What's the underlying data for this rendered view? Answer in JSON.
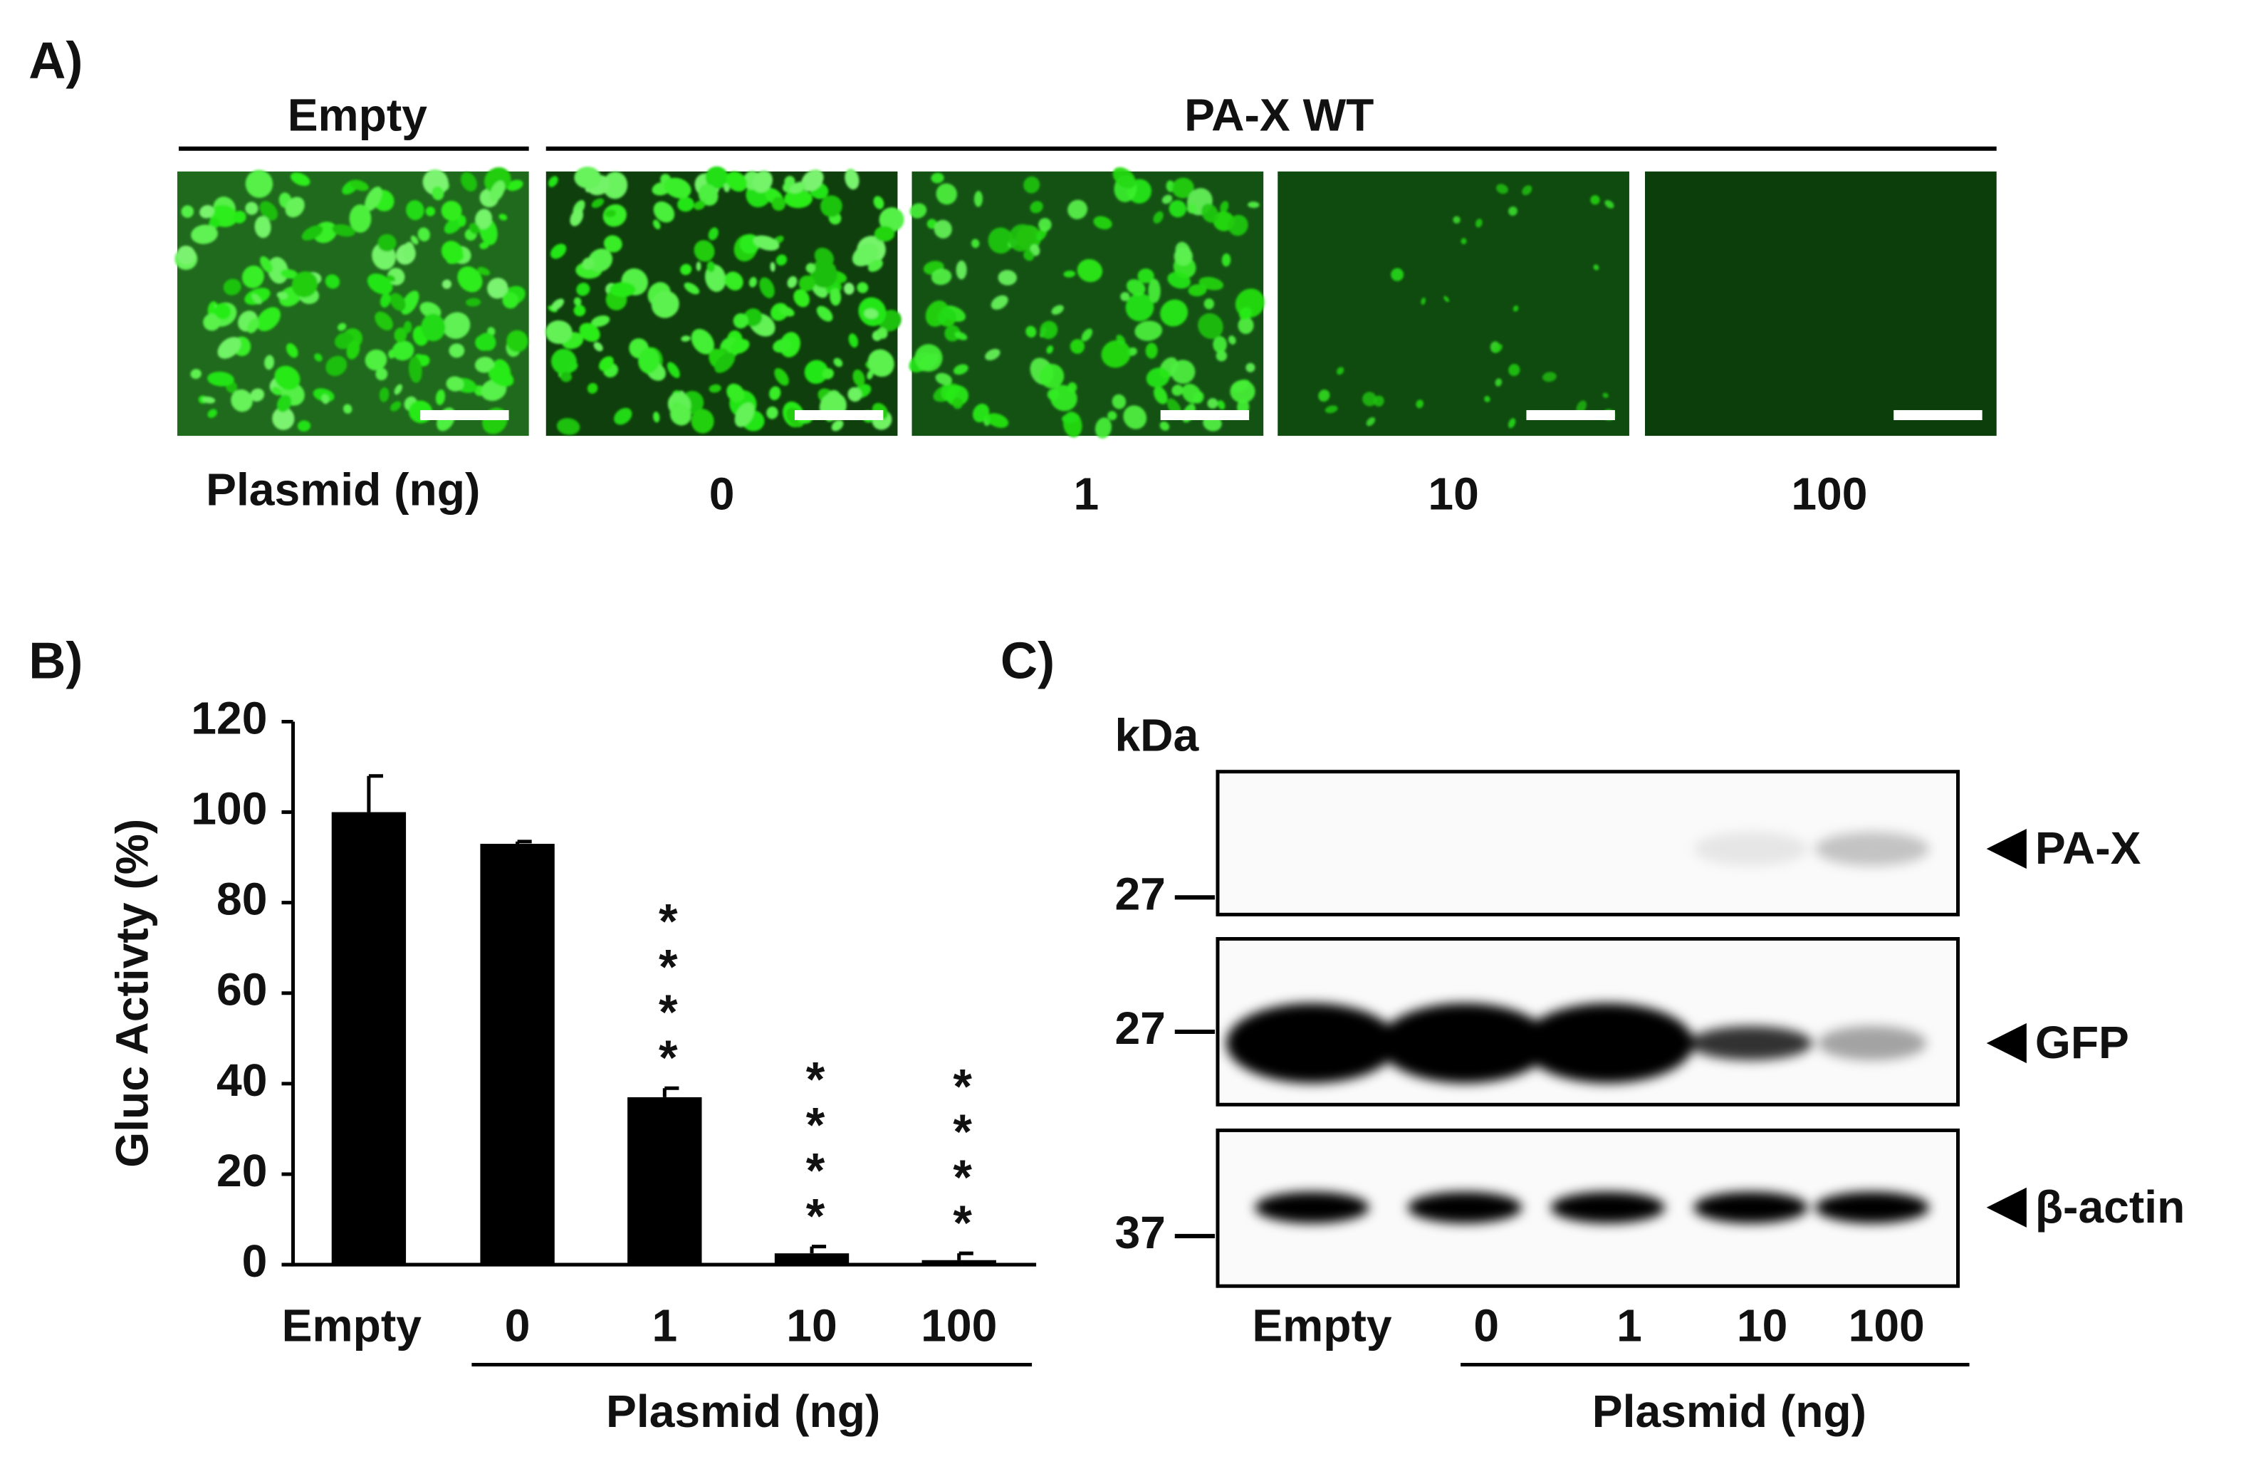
{
  "panel_a": {
    "label": "A)",
    "groups": [
      "Empty",
      "PA-X WT"
    ],
    "row_label": "Plasmid (ng)",
    "lanes": [
      "0",
      "1",
      "10",
      "100"
    ]
  },
  "chart_data": {
    "type": "bar",
    "panel_label": "B)",
    "y_label": "Gluc Activty (%)",
    "categories": [
      "Empty",
      "0",
      "1",
      "10",
      "100"
    ],
    "values": [
      100,
      93,
      37,
      2.5,
      1
    ],
    "errors": [
      8,
      0.5,
      2,
      1.5,
      1.5
    ],
    "significance": [
      null,
      null,
      "****",
      "****",
      "****"
    ],
    "color": "#000000",
    "ylim": [
      0,
      120
    ],
    "yticks": [
      0,
      20,
      40,
      60,
      80,
      100,
      120
    ],
    "x_group_label": "Plasmid (ng)"
  },
  "panel_c": {
    "label": "C)",
    "unit": "kDa",
    "blots": [
      {
        "target": "PA-X",
        "marker": 27
      },
      {
        "target": "GFP",
        "marker": 27
      },
      {
        "target": "β-actin",
        "marker": 37
      }
    ],
    "lanes": [
      "Empty",
      "0",
      "1",
      "10",
      "100"
    ],
    "group_label": "Plasmid (ng)"
  }
}
